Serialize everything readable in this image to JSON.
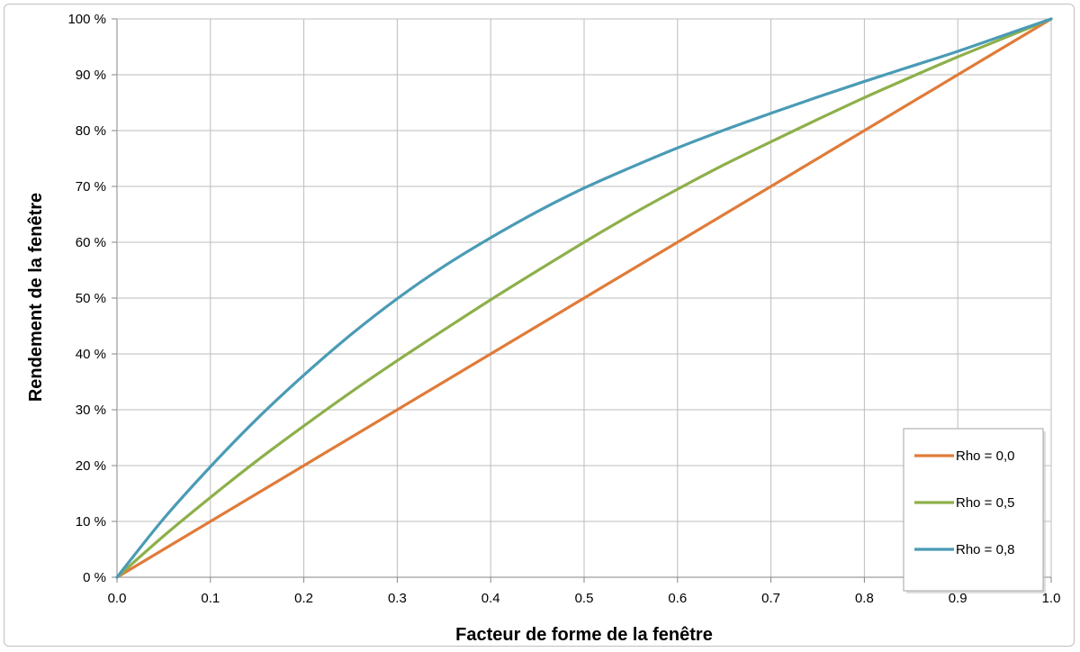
{
  "chart_data": {
    "type": "line",
    "title": "",
    "xlabel": "Facteur de forme de la fenêtre",
    "ylabel": "Rendement de la fenêtre",
    "x_ticks": [
      "0.0",
      "0.1",
      "0.2",
      "0.3",
      "0.4",
      "0.5",
      "0.6",
      "0.7",
      "0.8",
      "0.9",
      "1.0"
    ],
    "y_ticks": [
      "0 %",
      "10 %",
      "20 %",
      "30 %",
      "40 %",
      "50 %",
      "60 %",
      "70 %",
      "80 %",
      "90 %",
      "100 %"
    ],
    "xlim": [
      0,
      1
    ],
    "ylim": [
      0,
      100
    ],
    "grid": true,
    "legend_position": "bottom-right",
    "x": [
      0.0,
      0.05,
      0.1,
      0.15,
      0.2,
      0.25,
      0.3,
      0.35,
      0.4,
      0.45,
      0.5,
      0.55,
      0.6,
      0.65,
      0.7,
      0.75,
      0.8,
      0.85,
      0.9,
      0.95,
      1.0
    ],
    "series": [
      {
        "name": "Rho = 0,0",
        "color": "#e07b39",
        "values": [
          0,
          5,
          10,
          15,
          20,
          25,
          30,
          35,
          40,
          45,
          50,
          55,
          60,
          65,
          70,
          75,
          80,
          85,
          90,
          95,
          100
        ]
      },
      {
        "name": "Rho = 0,5",
        "color": "#8db04a",
        "values": [
          0,
          7.4,
          14.3,
          20.9,
          27.1,
          33.1,
          38.8,
          44.3,
          49.7,
          54.9,
          60.0,
          64.9,
          69.5,
          73.9,
          78.0,
          82.0,
          85.9,
          89.6,
          93.2,
          96.6,
          100
        ]
      },
      {
        "name": "Rho = 0,8",
        "color": "#4a9bb5",
        "values": [
          0,
          10.5,
          19.8,
          28.4,
          36.2,
          43.4,
          49.9,
          55.7,
          60.8,
          65.5,
          69.7,
          73.4,
          76.9,
          80.1,
          83.1,
          86.0,
          88.8,
          91.5,
          94.2,
          97.1,
          100
        ]
      }
    ]
  }
}
